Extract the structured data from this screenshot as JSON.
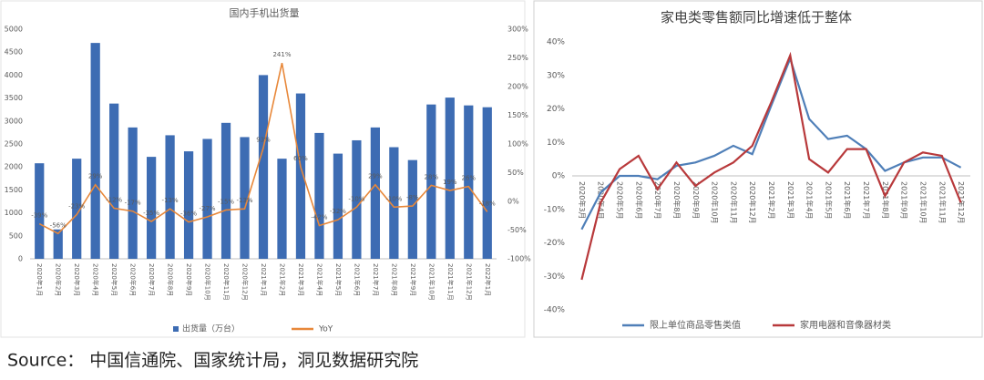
{
  "chart_data": [
    {
      "type": "bar",
      "title": "国内手机出货量",
      "categories": [
        "2020年1月",
        "2020年2月",
        "2020年3月",
        "2020年4月",
        "2020年5月",
        "2020年6月",
        "2020年7月",
        "2020年8月",
        "2020年9月",
        "2020年10月",
        "2020年11月",
        "2020年12月",
        "2021年1月",
        "2021年2月",
        "2021年3月",
        "2021年4月",
        "2021年5月",
        "2021年6月",
        "2021年7月",
        "2021年8月",
        "2021年9月",
        "2021年10月",
        "2021年11月",
        "2021年12月",
        "2022年1月"
      ],
      "series": [
        {
          "name": "出货量（万台）",
          "color": "#3d6cb3",
          "values": [
            2080,
            640,
            2180,
            4700,
            3380,
            2860,
            2220,
            2690,
            2340,
            2610,
            2960,
            2650,
            4000,
            2180,
            3600,
            2740,
            2290,
            2580,
            2860,
            2430,
            2150,
            3360,
            3510,
            3340,
            3300
          ]
        },
        {
          "name": "YoY",
          "type": "line",
          "axis": "y2",
          "color": "#e8883a",
          "values": [
            -39,
            -56,
            -23,
            29,
            -12,
            -17,
            -35,
            -13,
            -36,
            -27,
            -15,
            -13,
            93,
            241,
            60,
            -42,
            -32,
            -10,
            29,
            -10,
            -8,
            28,
            19,
            26,
            -18
          ],
          "value_labels": [
            "-39%",
            "-56%",
            "-23%",
            "29%",
            "-12%",
            "-17%",
            "-35%",
            "-13%",
            "-36%",
            "-27%",
            "-15%",
            "-13%",
            "93%",
            "241%",
            "60%",
            "-42%",
            "-32%",
            "-10%",
            "29%",
            "-10%",
            "-8%",
            "28%",
            "19%",
            "26%",
            "-18%"
          ]
        }
      ],
      "ylim": [
        0,
        5000
      ],
      "yticks": [
        0,
        500,
        1000,
        1500,
        2000,
        2500,
        3000,
        3500,
        4000,
        4500,
        5000
      ],
      "y2lim": [
        -100,
        300
      ],
      "y2ticks": [
        {
          "value": -100,
          "label": "-100%"
        },
        {
          "value": -50,
          "label": "-50%"
        },
        {
          "value": 0,
          "label": "0%"
        },
        {
          "value": 50,
          "label": "50%"
        },
        {
          "value": 100,
          "label": "100%"
        },
        {
          "value": 150,
          "label": "150%"
        },
        {
          "value": 200,
          "label": "200%"
        },
        {
          "value": 250,
          "label": "250%"
        },
        {
          "value": 300,
          "label": "300%"
        }
      ],
      "grid": false,
      "legend": "bottom"
    },
    {
      "type": "line",
      "title": "家电类零售额同比增速低于整体",
      "categories": [
        "2020年3月",
        "2020年4月",
        "2020年5月",
        "2020年6月",
        "2020年7月",
        "2020年8月",
        "2020年9月",
        "2020年10月",
        "2020年11月",
        "2020年12月",
        "2021年2月",
        "2021年3月",
        "2021年4月",
        "2021年5月",
        "2021年6月",
        "2021年7月",
        "2021年8月",
        "2021年9月",
        "2021年10月",
        "2021年11月",
        "2021年12月"
      ],
      "series": [
        {
          "name": "限上单位商品零售类值",
          "color": "#4f7fb8",
          "values": [
            -16,
            -5,
            0,
            0,
            -1,
            3,
            4,
            6,
            9,
            6.5,
            21,
            35,
            17,
            11,
            12,
            8,
            1.5,
            4,
            5.5,
            5.5,
            2.5
          ]
        },
        {
          "name": "家用电器和音像器材类",
          "color": "#b8393b",
          "values": [
            -31,
            -8,
            2,
            6,
            -4,
            4,
            -3,
            1,
            4,
            9,
            22,
            36,
            5,
            1,
            8,
            8,
            -6,
            4,
            7,
            6,
            -8
          ]
        }
      ],
      "ylim": [
        -40,
        40
      ],
      "yticks": [
        {
          "value": -40,
          "label": "-40%"
        },
        {
          "value": -30,
          "label": "-30%"
        },
        {
          "value": -20,
          "label": "-20%"
        },
        {
          "value": -10,
          "label": "-10%"
        },
        {
          "value": 0,
          "label": "0%"
        },
        {
          "value": 10,
          "label": "10%"
        },
        {
          "value": 20,
          "label": "20%"
        },
        {
          "value": 30,
          "label": "30%"
        },
        {
          "value": 40,
          "label": "40%"
        }
      ],
      "grid": false,
      "legend": "bottom"
    }
  ],
  "source": "Source： 中国信通院、国家统计局，洞见数据研究院"
}
